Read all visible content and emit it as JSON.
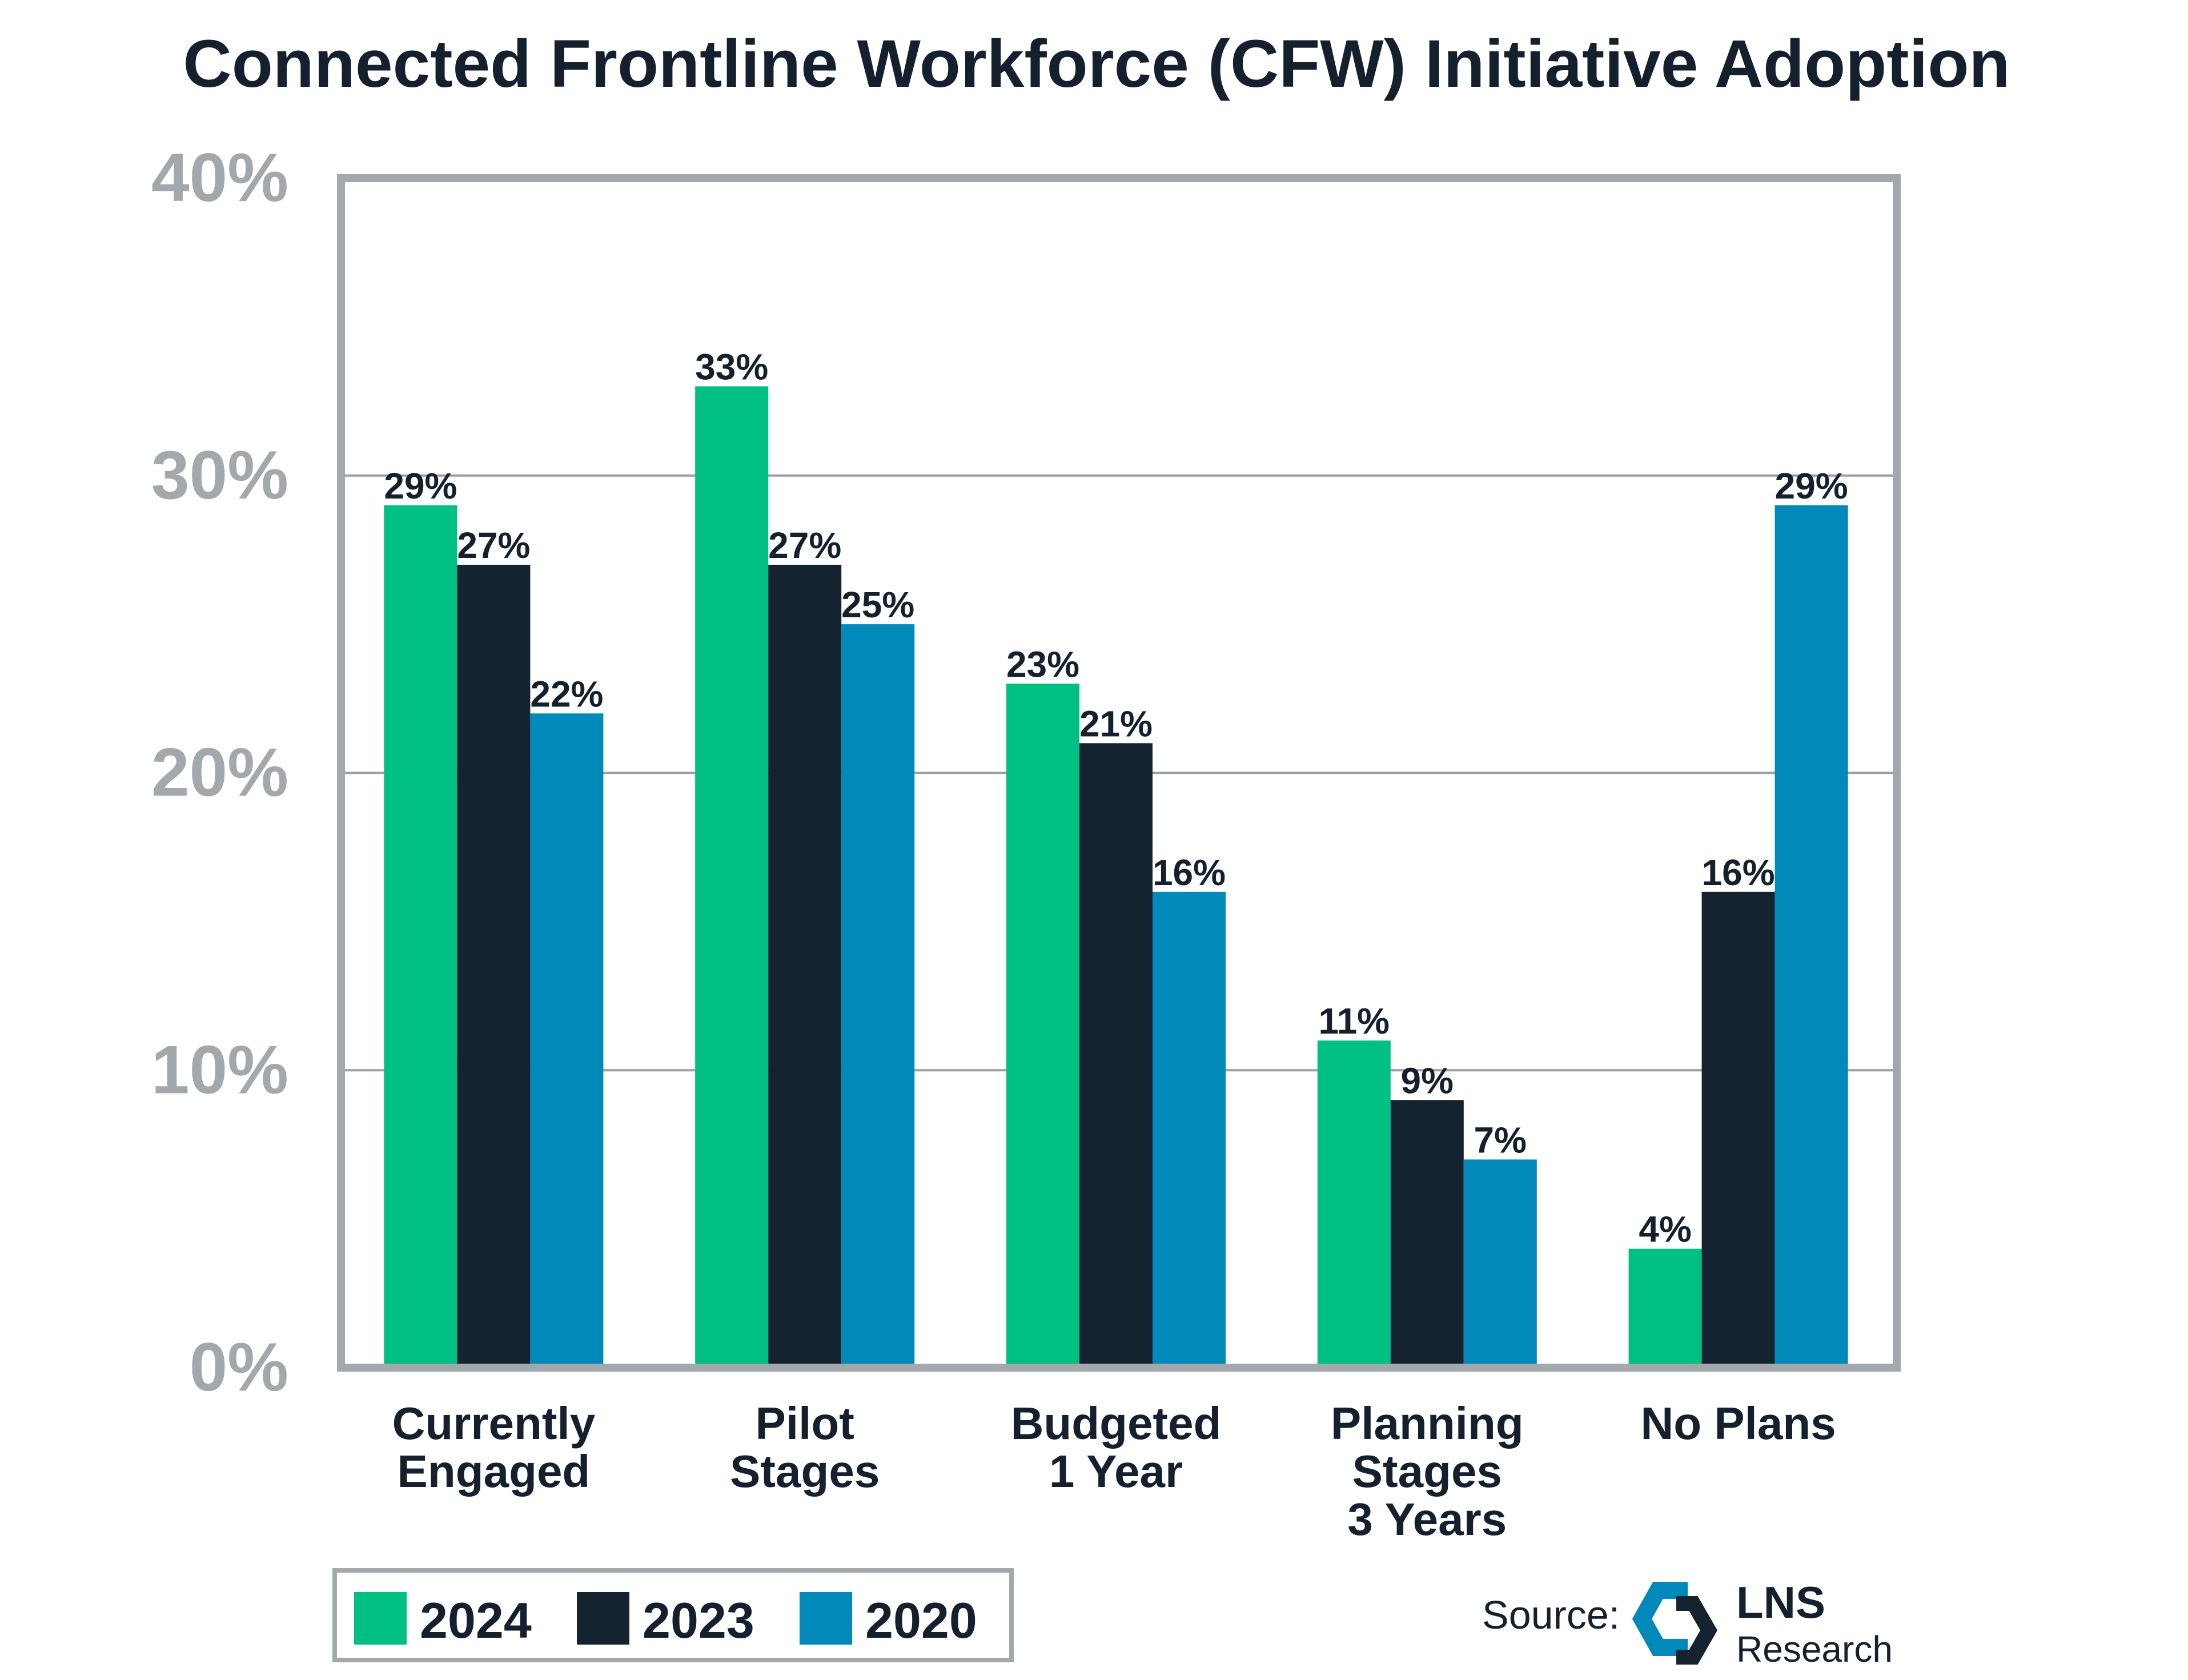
{
  "chart_data": {
    "type": "bar",
    "title": "Connected Frontline Workforce (CFW) Initiative Adoption",
    "categories": [
      [
        "Currently",
        "Engaged"
      ],
      [
        "Pilot",
        "Stages"
      ],
      [
        "Budgeted",
        "1 Year"
      ],
      [
        "Planning",
        "Stages",
        "3 Years"
      ],
      [
        "No Plans"
      ]
    ],
    "series": [
      {
        "name": "2024",
        "color": "#00bf82",
        "values": [
          29,
          33,
          23,
          11,
          4
        ],
        "labels": [
          "29%",
          "33%",
          "23%",
          "11%",
          "4%"
        ]
      },
      {
        "name": "2023",
        "color": "#14232f",
        "values": [
          27,
          27,
          21,
          9,
          16
        ],
        "labels": [
          "27%",
          "27%",
          "21%",
          "9%",
          "16%"
        ]
      },
      {
        "name": "2020",
        "color": "#0089b9",
        "values": [
          22,
          25,
          16,
          7,
          29
        ],
        "labels": [
          "22%",
          "25%",
          "16%",
          "7%",
          "29%"
        ]
      }
    ],
    "ylim": [
      0,
      40
    ],
    "yticks": [
      "0%",
      "10%",
      "20%",
      "30%",
      "40%"
    ],
    "grid": true,
    "legend": "bottom-left"
  },
  "source": {
    "label": "Source:",
    "logo_main": "LNS",
    "logo_sub": "Research"
  },
  "colors": {
    "text": "#14202e",
    "axis": "#a3a8ad",
    "grid": "#9a9fa4"
  }
}
